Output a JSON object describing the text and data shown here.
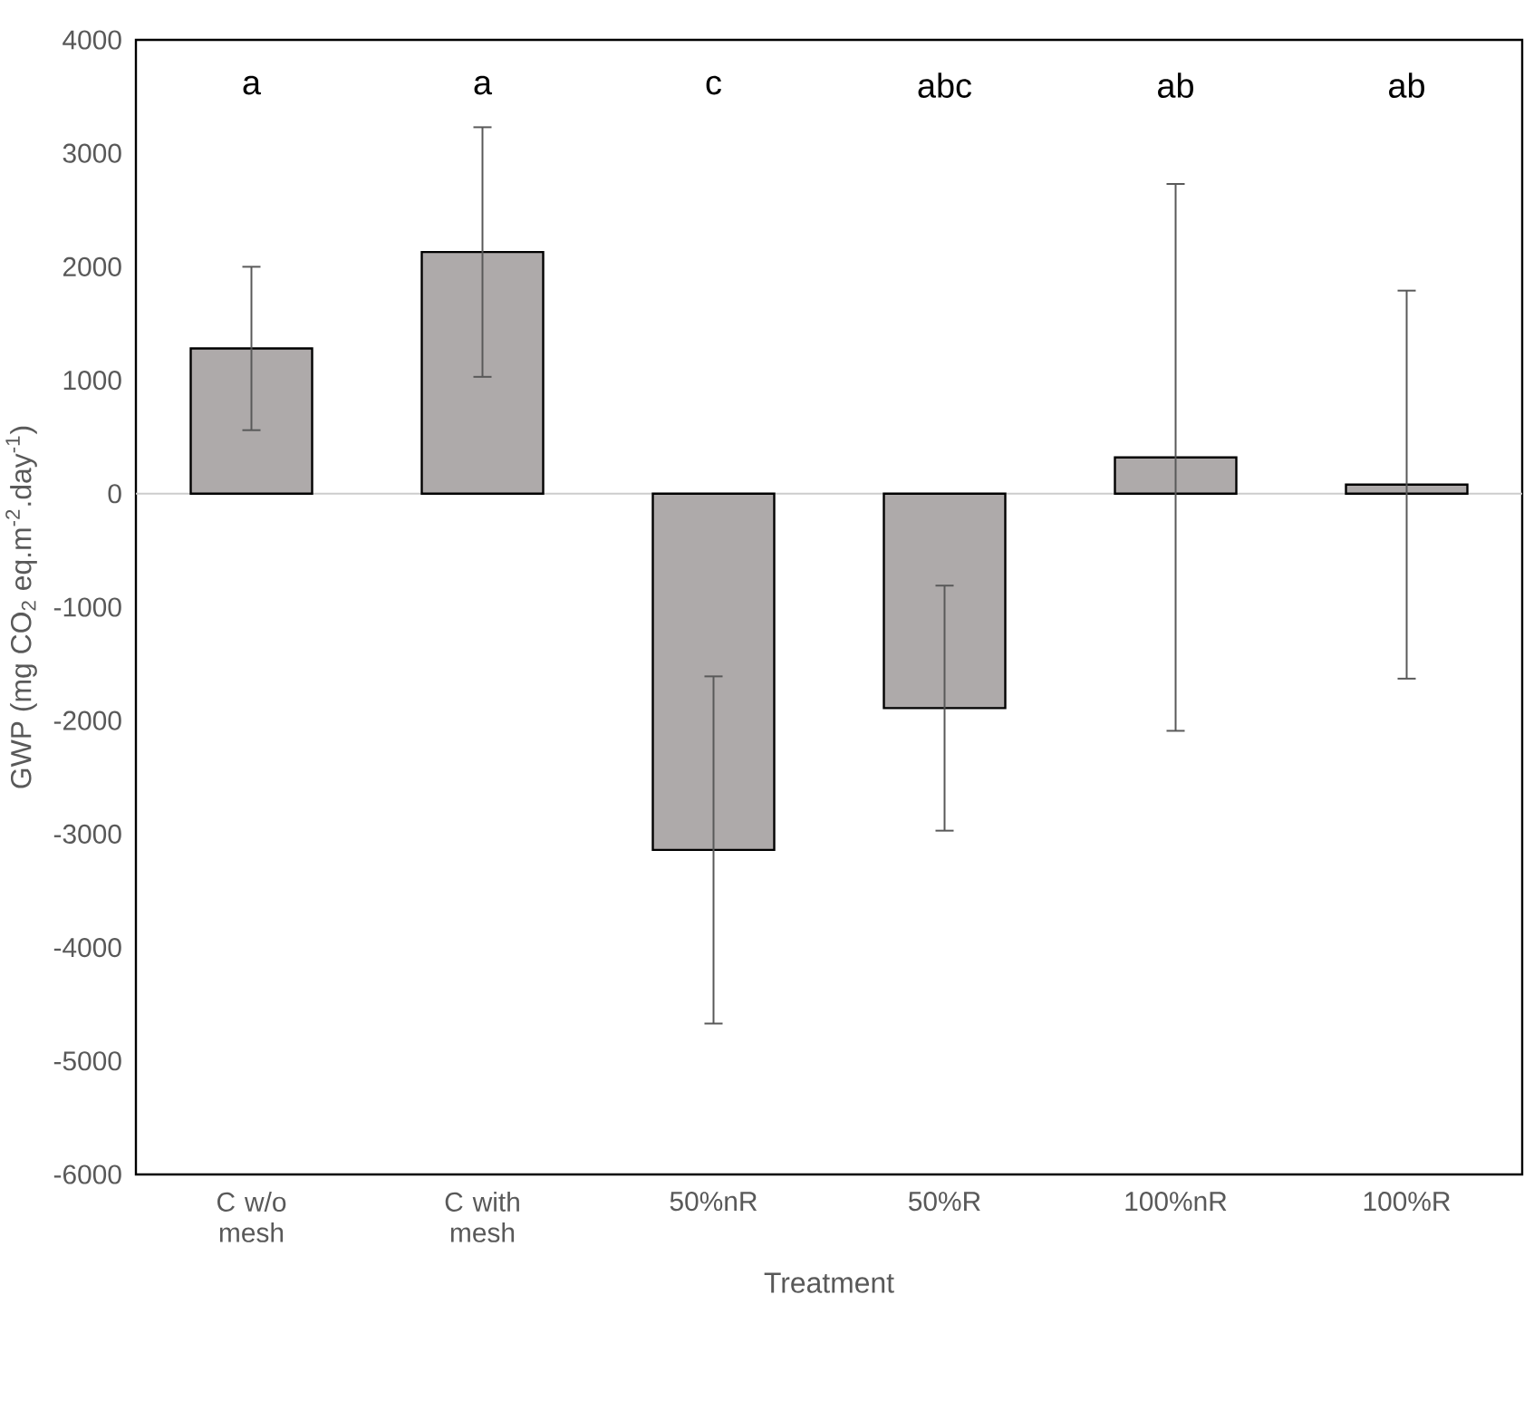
{
  "chart_data": {
    "type": "bar",
    "xlabel": "Treatment",
    "ylabel": "GWP (mg CO$_{2}$ eq.m$^{-2}$.day$^{-1}$)",
    "categories": [
      "C w/o mesh",
      "C with mesh",
      "50%nR",
      "50%R",
      "100%nR",
      "100%R"
    ],
    "values": [
      1280,
      2130,
      -3140,
      -1890,
      320,
      80
    ],
    "errors": [
      720,
      1100,
      1530,
      1080,
      2410,
      1710
    ],
    "color": "#aeaaaa",
    "ylim": [
      -6000,
      4000
    ],
    "yticks": [
      -6000,
      -5000,
      -4000,
      -3000,
      -2000,
      -1000,
      0,
      1000,
      2000,
      3000,
      4000
    ],
    "annotations": [
      "a",
      "a",
      "c",
      "abc",
      "ab",
      "ab"
    ]
  }
}
